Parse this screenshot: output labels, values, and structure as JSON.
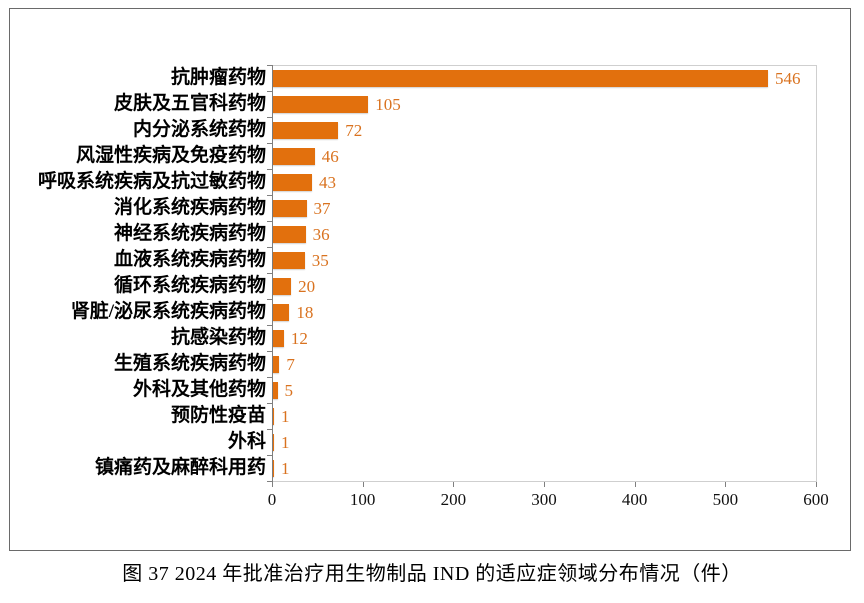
{
  "figure": {
    "caption": "图 37  2024 年批准治疗用生物制品 IND 的适应症领域分布情况（件）"
  },
  "chart_data": {
    "type": "bar",
    "orientation": "horizontal",
    "title": "",
    "xlabel": "",
    "ylabel": "",
    "categories": [
      "抗肿瘤药物",
      "皮肤及五官科药物",
      "内分泌系统药物",
      "风湿性疾病及免疫药物",
      "呼吸系统疾病及抗过敏药物",
      "消化系统疾病药物",
      "神经系统疾病药物",
      "血液系统疾病药物",
      "循环系统疾病药物",
      "肾脏/泌尿系统疾病药物",
      "抗感染药物",
      "生殖系统疾病药物",
      "外科及其他药物",
      "预防性疫苗",
      "外科",
      "镇痛药及麻醉科用药"
    ],
    "values": [
      546,
      105,
      72,
      46,
      43,
      37,
      36,
      35,
      20,
      18,
      12,
      7,
      5,
      1,
      1,
      1
    ],
    "xlim": [
      0,
      600
    ],
    "xticks": [
      0,
      100,
      200,
      300,
      400,
      500,
      600
    ],
    "grid": false,
    "legend": false,
    "data_labels": true,
    "colors": {
      "bar": "#e2700d",
      "value_label": "#d9721f",
      "axis_line": "#7f7f7f",
      "plot_border": "#cfcfcf",
      "category_label": "#000000",
      "tick_label": "#111111"
    }
  }
}
